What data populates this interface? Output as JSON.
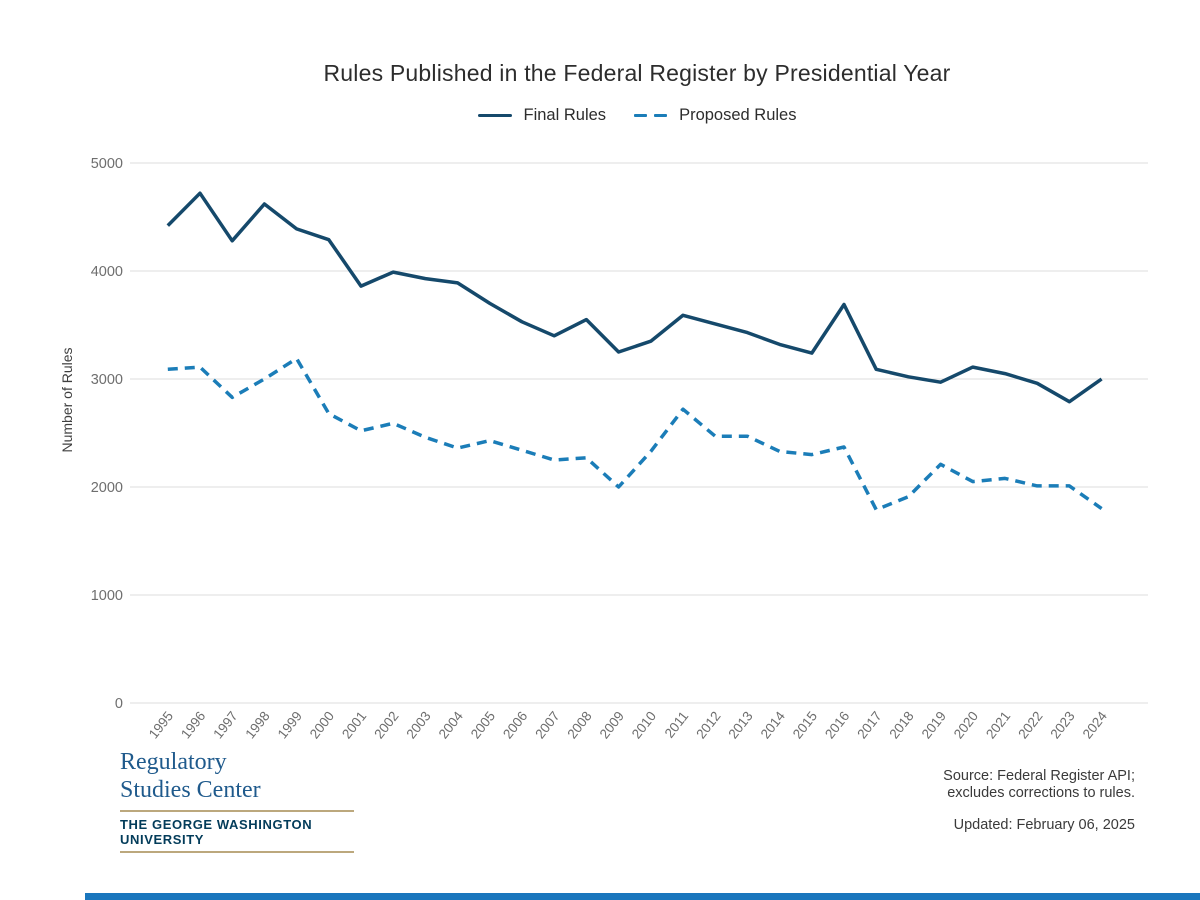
{
  "chart": {
    "title": "Rules Published in the Federal Register by Presidential Year",
    "y_axis_title": "Number of Rules"
  },
  "chart_data": {
    "type": "line",
    "title": "Rules Published in the Federal Register by Presidential Year",
    "xlabel": "",
    "ylabel": "Number of Rules",
    "ylim": [
      0,
      5000
    ],
    "yticks": [
      0,
      1000,
      2000,
      3000,
      4000,
      5000
    ],
    "grid": true,
    "legend_position": "top",
    "categories": [
      "1995",
      "1996",
      "1997",
      "1998",
      "1999",
      "2000",
      "2001",
      "2002",
      "2003",
      "2004",
      "2005",
      "2006",
      "2007",
      "2008",
      "2009",
      "2010",
      "2011",
      "2012",
      "2013",
      "2014",
      "2015",
      "2016",
      "2017",
      "2018",
      "2019",
      "2020",
      "2021",
      "2022",
      "2023",
      "2024"
    ],
    "series": [
      {
        "name": "Final Rules",
        "style": "solid",
        "color": "#15496b",
        "values": [
          4420,
          4720,
          4280,
          4620,
          4390,
          4290,
          3860,
          3990,
          3930,
          3890,
          3700,
          3530,
          3400,
          3550,
          3250,
          3350,
          3590,
          3510,
          3430,
          3320,
          3240,
          3690,
          3090,
          3020,
          2970,
          3110,
          3050,
          2960,
          2790,
          3000
        ]
      },
      {
        "name": "Proposed Rules",
        "style": "dashed",
        "color": "#1b7db8",
        "values": [
          3090,
          3110,
          2830,
          3000,
          3190,
          2680,
          2520,
          2590,
          2460,
          2360,
          2430,
          2340,
          2250,
          2270,
          2000,
          2330,
          2720,
          2470,
          2470,
          2330,
          2300,
          2370,
          1790,
          1910,
          2210,
          2050,
          2080,
          2010,
          2010,
          1800
        ]
      }
    ],
    "tick_color": "#6e6e6e",
    "grid_color": "#dddddd"
  },
  "footer": {
    "logo_line1": "Regulatory",
    "logo_line2": "Studies Center",
    "logo_line3": "THE GEORGE WASHINGTON UNIVERSITY",
    "logo_serif_color": "#1f5a8c",
    "logo_gw_color": "#033c5a",
    "logo_rule_color": "#bca87d",
    "source_line1": "Source: Federal Register API;",
    "source_line2": "excludes corrections to rules.",
    "updated": "Updated: February 06, 2025",
    "bottom_bar_color": "#1a76bd"
  }
}
